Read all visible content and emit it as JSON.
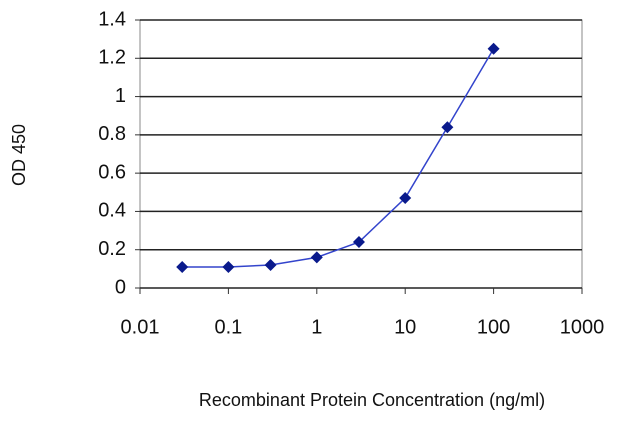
{
  "chart_data": {
    "type": "line",
    "x_label": "Recombinant Protein Concentration (ng/ml)",
    "y_label": "OD 450",
    "x": [
      0.03,
      0.1,
      0.3,
      1,
      3,
      10,
      30,
      100
    ],
    "values": [
      0.11,
      0.11,
      0.12,
      0.16,
      0.24,
      0.47,
      0.84,
      1.25
    ],
    "color": "#3344cc",
    "marker_color": "#0a1a8c",
    "xscale": "log",
    "xlim": [
      0.01,
      1000
    ],
    "xticks": [
      0.01,
      0.1,
      1,
      10,
      100,
      1000
    ],
    "ylim": [
      0,
      1.4
    ],
    "yticks": [
      0,
      0.2,
      0.4,
      0.6,
      0.8,
      1,
      1.2,
      1.4
    ],
    "grid": true
  }
}
